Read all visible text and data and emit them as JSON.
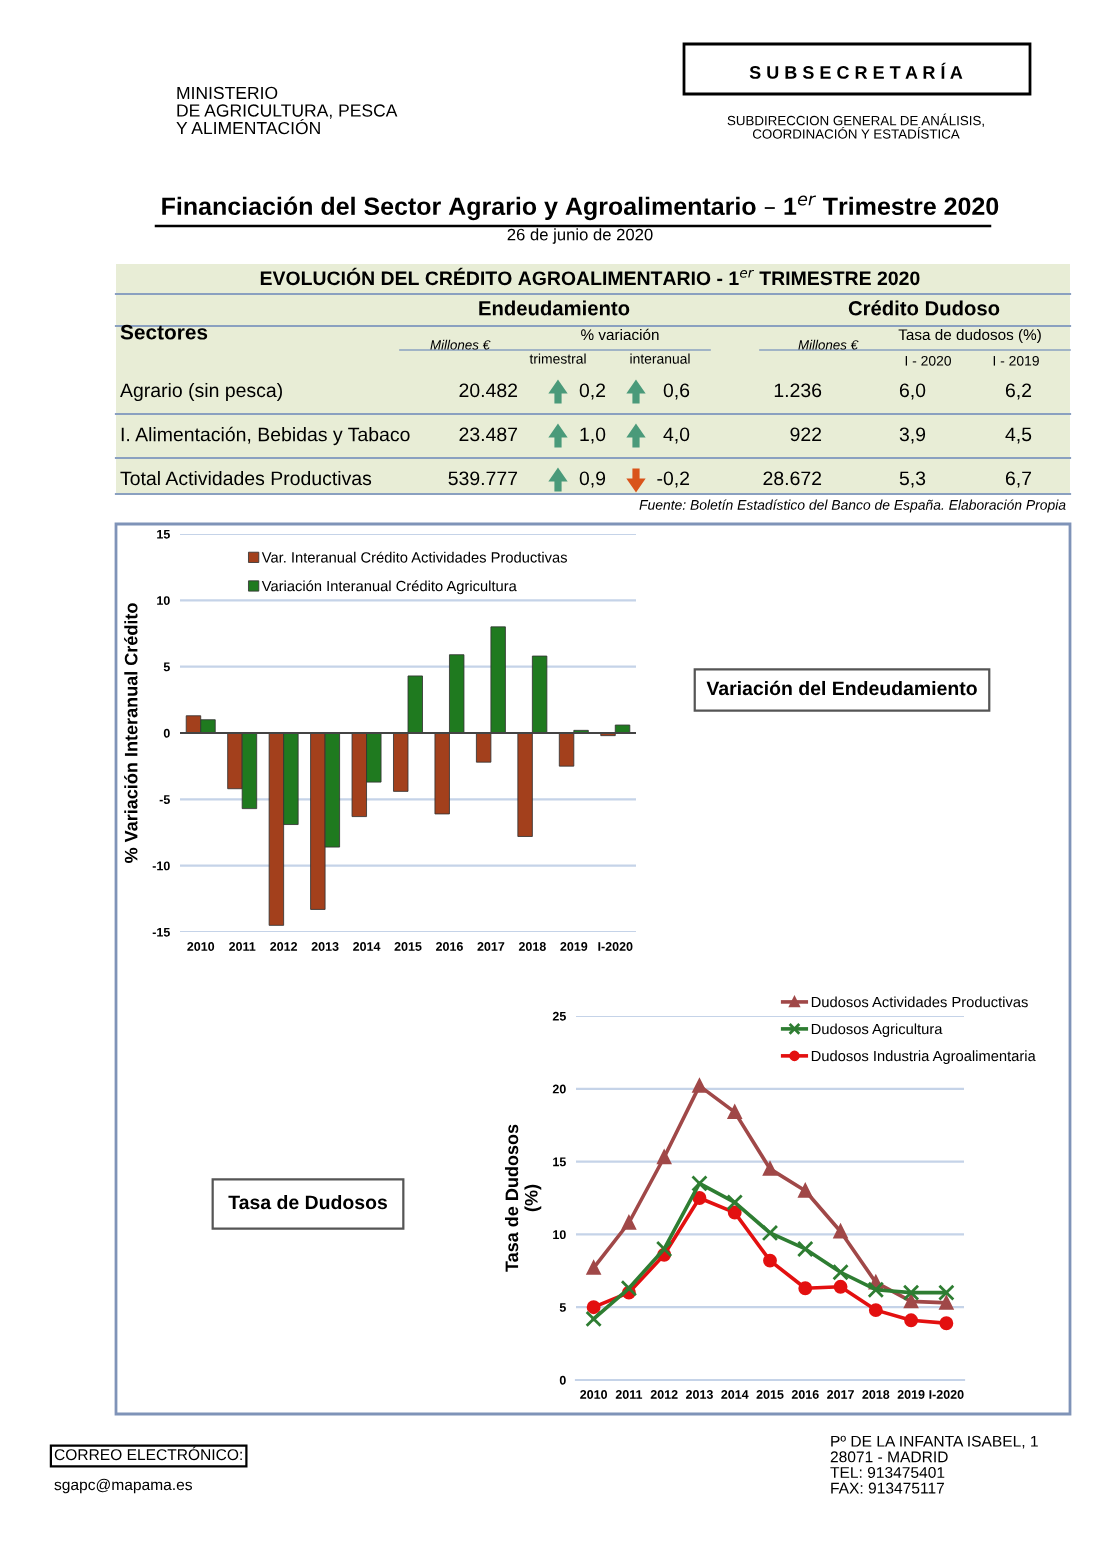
{
  "chart_data": [
    {
      "type": "other",
      "title": "Financiación del Sector Agrario y Agroalimentario – 1$^{er}$ Trimestre 2020",
      "subtitle": "26 de junio de 2020",
      "annotations": [
        "MINISTERIO\nDE AGRICULTURA, PESCA\nY ALIMENTACIÓN",
        "S U B S E C R E T A R Í A",
        "SUBDIRECCION GENERAL DE ANÁLISIS,\nCOORDINACIÓN Y ESTADÍSTICA"
      ]
    },
    {
      "type": "other",
      "title": "EVOLUCIÓN DEL CRÉDITO AGROALIMENTARIO - 1$^{er}$ TRIMESTRE 2020",
      "annotations": [
        "Sectores",
        "Endeudamiento",
        "Crédito Dudoso",
        "Millones €",
        "% variación",
        "trimestral",
        "interanual",
        "Millones €",
        "Tasa de dudosos (%)",
        "I - 2020",
        "I - 2019",
        "Agrario (sin pesca)",
        "20.482",
        "0,2",
        "0,6",
        "1.236",
        "6,0",
        "6,2",
        "I. Alimentación, Bebidas y Tabaco",
        "23.487",
        "1,0",
        "4,0",
        "922",
        "3,9",
        "4,5",
        "Total Actividades Productivas",
        "539.777",
        "0,9",
        "-0,2",
        "28.672",
        "5,3",
        "6,7",
        "Fuente: Boletín Estadístico del Banco de España. Elaboración Propia"
      ]
    },
    {
      "type": "bar",
      "ylabel": "% Variación Interanual Crédito",
      "categories": [
        "2010",
        "2011",
        "2012",
        "2013",
        "2014",
        "2015",
        "2016",
        "2017",
        "2018",
        "2019",
        "I-2020"
      ],
      "series": [
        {
          "name": "Var. Interanual Crédito Actividades Productivas",
          "color": "#a3401c",
          "values": [
            1.3,
            -4.2,
            -14.5,
            -13.3,
            -6.3,
            -4.4,
            -6.1,
            -2.2,
            -7.8,
            -2.5,
            -0.2
          ]
        },
        {
          "name": "Variación Interanual Crédito Agricultura",
          "color": "#1f7a1f",
          "values": [
            1.0,
            -5.7,
            -6.9,
            -8.6,
            -3.7,
            4.3,
            5.9,
            8.0,
            5.8,
            0.2,
            0.6
          ]
        }
      ],
      "ylim": [
        -15,
        15
      ],
      "yticks": [
        -15,
        -10,
        -5,
        0,
        5,
        10,
        15
      ],
      "grid": "y",
      "legend": "top",
      "annotations": [
        "Variación del Endeudamiento"
      ]
    },
    {
      "type": "line",
      "ylabel": "Tasa de Dudosos\n(%)",
      "categories": [
        "2010",
        "2011",
        "2012",
        "2013",
        "2014",
        "2015",
        "2016",
        "2017",
        "2018",
        "2019",
        "I-2020"
      ],
      "series": [
        {
          "name": "Dudosos Actividades Productivas",
          "color": "#a04848",
          "marker": "triangle",
          "values": [
            7.7,
            10.8,
            15.3,
            20.2,
            18.4,
            14.5,
            13.0,
            10.2,
            6.7,
            5.4,
            5.3
          ]
        },
        {
          "name": "Dudosos Agricultura",
          "color": "#2e7d32",
          "marker": "cross",
          "values": [
            4.2,
            6.3,
            9.0,
            13.5,
            12.2,
            10.1,
            9.0,
            7.4,
            6.2,
            6.0,
            6.0
          ]
        },
        {
          "name": "Dudosos Industria Agroalimentaria",
          "color": "#e31010",
          "marker": "circle",
          "values": [
            5.0,
            6.0,
            8.6,
            12.5,
            11.5,
            8.2,
            6.3,
            6.4,
            4.8,
            4.1,
            3.9
          ]
        }
      ],
      "ylim": [
        0,
        25
      ],
      "yticks": [
        0,
        5,
        10,
        15,
        20,
        25
      ],
      "grid": "y",
      "legend": "top right",
      "annotations": [
        "Tasa de Dudosos"
      ]
    },
    {
      "type": "other",
      "annotations": [
        "CORREO ELECTRÓNICO:",
        "sgapc@mapama.es",
        "Pº DE LA INFANTA ISABEL, 1\n28071 - MADRID\nTEL: 913475401\nFAX: 913475117"
      ]
    }
  ]
}
